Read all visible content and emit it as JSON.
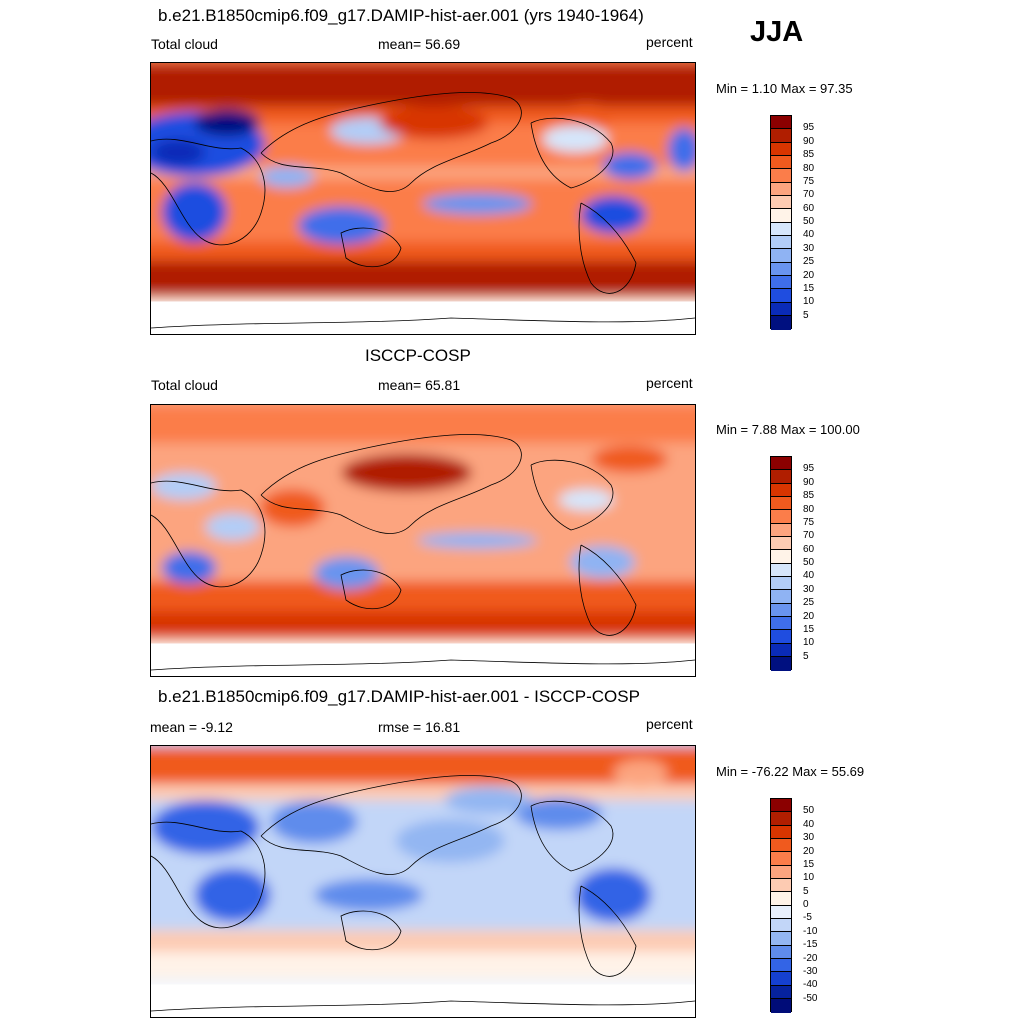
{
  "season": "JJA",
  "panels": [
    {
      "title": "b.e21.B1850cmip6.f09_g17.DAMIP-hist-aer.001 (yrs 1940-1964)",
      "left_label": "Total cloud",
      "center_label": "mean=  56.69",
      "right_label": "percent",
      "minmax": "Min =   1.10 Max =  97.35",
      "colorbar": {
        "labels": [
          "95",
          "90",
          "85",
          "80",
          "75",
          "70",
          "60",
          "50",
          "40",
          "30",
          "25",
          "20",
          "15",
          "10",
          "5"
        ],
        "colors": [
          "#8b0000",
          "#b01e00",
          "#d83500",
          "#f05a1e",
          "#fb7d4a",
          "#fca47f",
          "#fdcbb2",
          "#fff3e8",
          "#d6e6fb",
          "#b2cdf7",
          "#8fb3f3",
          "#6994ef",
          "#3f6eea",
          "#1f4de0",
          "#0a2bb8",
          "#001080"
        ]
      },
      "field": "model"
    },
    {
      "title": "ISCCP-COSP",
      "left_label": "Total cloud",
      "center_label": "mean=  65.81",
      "right_label": "percent",
      "minmax": "Min =   7.88 Max = 100.00",
      "colorbar": {
        "labels": [
          "95",
          "90",
          "85",
          "80",
          "75",
          "70",
          "60",
          "50",
          "40",
          "30",
          "25",
          "20",
          "15",
          "10",
          "5"
        ],
        "colors": [
          "#8b0000",
          "#b01e00",
          "#d83500",
          "#f05a1e",
          "#fb7d4a",
          "#fca47f",
          "#fdcbb2",
          "#fff3e8",
          "#d6e6fb",
          "#b2cdf7",
          "#8fb3f3",
          "#6994ef",
          "#3f6eea",
          "#1f4de0",
          "#0a2bb8",
          "#001080"
        ]
      },
      "field": "obs"
    },
    {
      "title": "b.e21.B1850cmip6.f09_g17.DAMIP-hist-aer.001 - ISCCP-COSP",
      "left_label": "mean =  -9.12",
      "center_label": "rmse =  16.81",
      "right_label": "percent",
      "minmax": "Min = -76.22 Max =  55.69",
      "colorbar": {
        "labels": [
          "50",
          "40",
          "30",
          "20",
          "15",
          "10",
          "5",
          "0",
          "-5",
          "-10",
          "-15",
          "-20",
          "-30",
          "-40",
          "-50"
        ],
        "colors": [
          "#8b0000",
          "#b01e00",
          "#d83500",
          "#f05a1e",
          "#fb7d4a",
          "#fca47f",
          "#fdcbb2",
          "#fff3e8",
          "#e8f0fd",
          "#c2d6f8",
          "#93b6f2",
          "#5f8cec",
          "#3364e6",
          "#1540d0",
          "#06229e",
          "#000c78"
        ]
      },
      "field": "diff"
    }
  ]
}
